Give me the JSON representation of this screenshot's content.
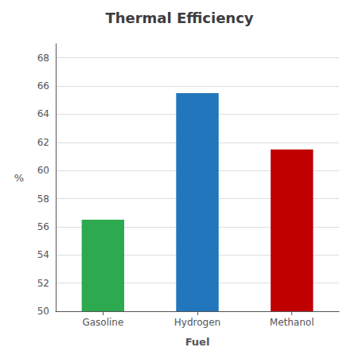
{
  "chart_data": {
    "type": "bar",
    "title": "Thermal Efficiency",
    "xlabel": "Fuel",
    "ylabel": "%",
    "categories": [
      "Gasoline",
      "Hydrogen",
      "Methanol"
    ],
    "values": [
      56.5,
      65.5,
      61.5
    ],
    "colors": [
      "#2daa4f",
      "#2176bc",
      "#c00000"
    ],
    "ylim": [
      50,
      69
    ],
    "yticks": [
      50,
      52,
      54,
      56,
      58,
      60,
      62,
      64,
      66,
      68
    ],
    "grid": true
  }
}
